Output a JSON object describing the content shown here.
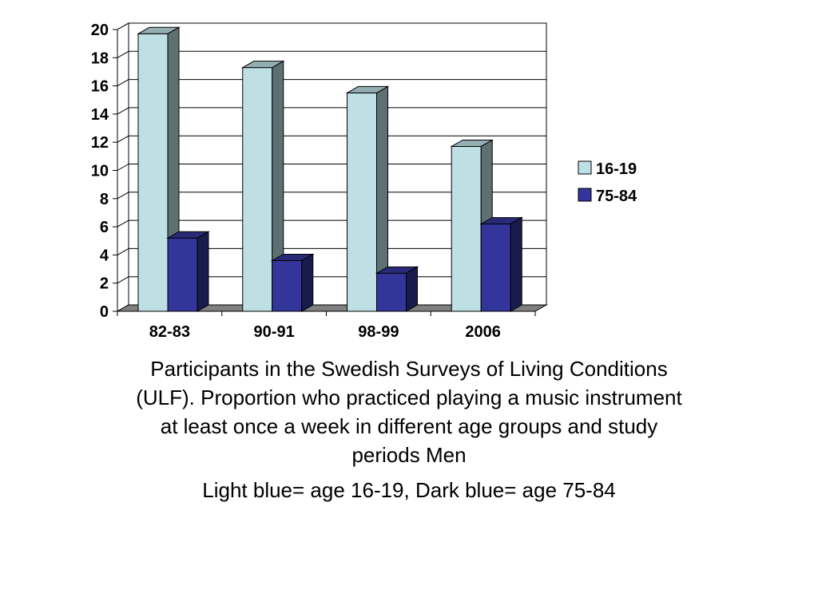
{
  "chart_data": {
    "type": "bar",
    "categories": [
      "82-83",
      "90-91",
      "98-99",
      "2006"
    ],
    "series": [
      {
        "name": "16-19",
        "values": [
          19.7,
          17.3,
          15.5,
          11.7
        ],
        "color": "#BEE0E5"
      },
      {
        "name": "75-84",
        "values": [
          5.2,
          3.6,
          2.7,
          6.2
        ],
        "color": "#34359A"
      }
    ],
    "yticks": [
      0,
      2,
      4,
      6,
      8,
      10,
      12,
      14,
      16,
      18,
      20
    ],
    "ylim": [
      0,
      20
    ],
    "grid": true,
    "legend_position": "right",
    "style": "3d-clustered"
  },
  "caption": {
    "text": "Participants in the Swedish Surveys of Living Conditions (ULF). Proportion who practiced playing a music instrument at least once a week in different age groups and study periods   Men",
    "note": "Light blue= age 16-19, Dark blue= age 75-84"
  }
}
